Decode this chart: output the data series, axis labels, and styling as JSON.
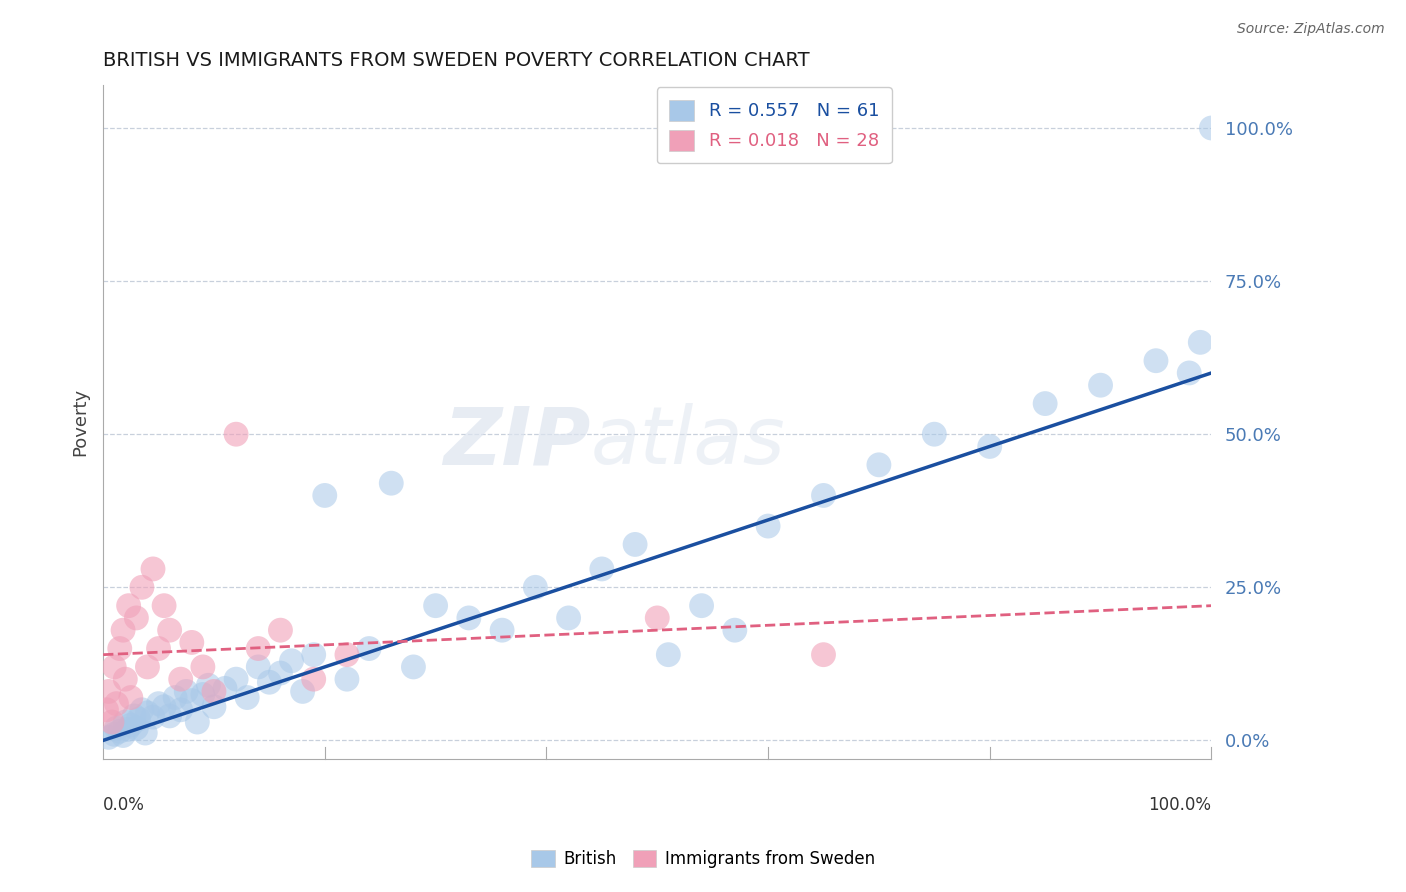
{
  "title": "BRITISH VS IMMIGRANTS FROM SWEDEN POVERTY CORRELATION CHART",
  "source": "Source: ZipAtlas.com",
  "ylabel": "Poverty",
  "ytick_values": [
    0,
    25,
    50,
    75,
    100
  ],
  "xlim": [
    0,
    100
  ],
  "ylim": [
    -3,
    107
  ],
  "legend_british": "R = 0.557   N = 61",
  "legend_sweden": "R = 0.018   N = 28",
  "watermark_zip": "ZIP",
  "watermark_atlas": "atlas",
  "blue_scatter": "#a8c8e8",
  "pink_scatter": "#f0a0b8",
  "blue_line_color": "#1a4fa0",
  "pink_line_color": "#e06080",
  "grid_color": "#c8d0dc",
  "british_x": [
    0.5,
    1.0,
    1.2,
    1.5,
    1.8,
    2.0,
    2.2,
    2.5,
    2.8,
    3.0,
    3.2,
    3.5,
    3.8,
    4.0,
    4.5,
    5.0,
    5.5,
    6.0,
    6.5,
    7.0,
    7.5,
    8.0,
    8.5,
    9.0,
    9.5,
    10.0,
    11.0,
    12.0,
    13.0,
    14.0,
    15.0,
    16.0,
    17.0,
    18.0,
    19.0,
    20.0,
    22.0,
    24.0,
    26.0,
    28.0,
    30.0,
    33.0,
    36.0,
    39.0,
    42.0,
    45.0,
    48.0,
    51.0,
    54.0,
    57.0,
    60.0,
    65.0,
    70.0,
    75.0,
    80.0,
    85.0,
    90.0,
    95.0,
    98.0,
    99.0,
    100.0
  ],
  "british_y": [
    0.5,
    1.0,
    2.0,
    1.5,
    0.8,
    3.0,
    1.8,
    2.5,
    4.0,
    2.0,
    3.5,
    5.0,
    1.2,
    4.5,
    3.8,
    6.0,
    5.5,
    4.0,
    7.0,
    5.0,
    8.0,
    6.5,
    3.0,
    7.5,
    9.0,
    5.5,
    8.5,
    10.0,
    7.0,
    12.0,
    9.5,
    11.0,
    13.0,
    8.0,
    14.0,
    40.0,
    10.0,
    15.0,
    42.0,
    12.0,
    22.0,
    20.0,
    18.0,
    25.0,
    20.0,
    28.0,
    32.0,
    14.0,
    22.0,
    18.0,
    35.0,
    40.0,
    45.0,
    50.0,
    48.0,
    55.0,
    58.0,
    62.0,
    60.0,
    65.0,
    100.0
  ],
  "sweden_x": [
    0.3,
    0.5,
    0.8,
    1.0,
    1.2,
    1.5,
    1.8,
    2.0,
    2.3,
    2.5,
    3.0,
    3.5,
    4.0,
    4.5,
    5.0,
    5.5,
    6.0,
    7.0,
    8.0,
    9.0,
    10.0,
    12.0,
    14.0,
    16.0,
    19.0,
    22.0,
    50.0,
    65.0
  ],
  "sweden_y": [
    5.0,
    8.0,
    3.0,
    12.0,
    6.0,
    15.0,
    18.0,
    10.0,
    22.0,
    7.0,
    20.0,
    25.0,
    12.0,
    28.0,
    15.0,
    22.0,
    18.0,
    10.0,
    16.0,
    12.0,
    8.0,
    50.0,
    15.0,
    18.0,
    10.0,
    14.0,
    20.0,
    14.0
  ],
  "brit_slope": 0.6,
  "brit_intercept": 0.0,
  "swe_slope": 0.08,
  "swe_intercept": 14.0
}
